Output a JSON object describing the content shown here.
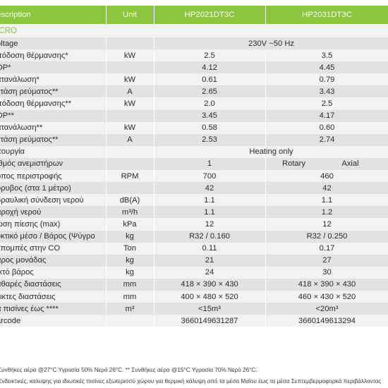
{
  "header": {
    "description": "escription",
    "unit": "Unit",
    "model1": "HP2021DT3C",
    "model2": "HP2031DT3C"
  },
  "section_label": "ICRO",
  "rows": [
    {
      "desc": "oltage",
      "unit": "",
      "span": "230V ~50 Hz"
    },
    {
      "desc": "πόδοση θέρμανσης*",
      "unit": "kW",
      "v1": "2.5",
      "v2": "3.5"
    },
    {
      "desc": "OP*",
      "unit": "",
      "v1": "4.12",
      "v2": "4.45"
    },
    {
      "desc": "ατανάλωση*",
      "unit": "kW",
      "v1": "0.61",
      "v2": "0.79"
    },
    {
      "desc": "ντάση ρεύματος**",
      "unit": "A",
      "v1": "2.65",
      "v2": "3.43"
    },
    {
      "desc": "πόδοση θέρμανσης**",
      "unit": "kW",
      "v1": "2.0",
      "v2": "2.5"
    },
    {
      "desc": "OP**",
      "unit": "",
      "v1": "3.45",
      "v2": "4.17"
    },
    {
      "desc": "ατανάλωση**",
      "unit": "kW",
      "v1": "0.58",
      "v2": "0.60"
    },
    {
      "desc": "ντάση ρεύματος**",
      "unit": "A",
      "v1": "2.53",
      "v2": "2.74"
    },
    {
      "desc": "ιτουργία",
      "unit": "",
      "span": "Heating only"
    },
    {
      "desc": "ιθμός ανεμιστήρων",
      "unit": "",
      "v1": "1",
      "split": [
        "Rotary",
        "Axial"
      ]
    },
    {
      "desc": "όπος περιστροφής",
      "unit": "RPM",
      "v1": "700",
      "v2": "460"
    },
    {
      "desc": "όρυβος (στα 1 μέτρο)",
      "unit": "",
      "v1": "42",
      "v2": "42"
    },
    {
      "desc": "δραυλική σύνδεση νερού",
      "unit": "dB(A)",
      "v1": "1.1",
      "v2": "1.1"
    },
    {
      "desc": "αροχή νερού",
      "unit": "m³/h",
      "v1": "1.1",
      "v2": "1.2"
    },
    {
      "desc": "ώση πίεσης (max)",
      "unit": "kPa",
      "v1": "12",
      "v2": "12"
    },
    {
      "desc": "υκτικό μέσο / Βάρος (Ψύγρο",
      "unit": "kg",
      "v1": "R32 / 0.160",
      "v2": "R32 / 0.250"
    },
    {
      "desc": "κπομπές στην CO",
      "unit": "Ton",
      "v1": "0.11",
      "v2": "0.17"
    },
    {
      "desc": "άρος μονάδας",
      "unit": "kg",
      "v1": "21",
      "v2": "27"
    },
    {
      "desc": "ικτό βάρος",
      "unit": "kg",
      "v1": "24",
      "v2": "30"
    },
    {
      "desc": "αθαρές διαστάσεις",
      "unit": "mm",
      "v1": "418 × 390 × 430",
      "v2": "418 × 390 × 430"
    },
    {
      "desc": "εικτες διαστάσεις",
      "unit": "mm",
      "v1": "400 × 480 × 520",
      "v2": "460 × 430 × 520"
    },
    {
      "desc": "α πισίνες έως ****",
      "unit": "m³",
      "v1": "<15m³",
      "v2": "<20m³"
    },
    {
      "desc": "arcode",
      "unit": "",
      "v1": "3660149631287",
      "v2": "3660149613294"
    }
  ],
  "notes": {
    "line1": "Συνθήκες αέρα @27°C Υγρασία 50% Νερό 26°C. ** Συνθήκες αέρα @15°C Υγρασία 70% Νερό 26°C.",
    "line2": "Ενδεικτικές, καλυψης για ιδιωτικές πισίνες εξωτερισσύ χώρου για θερμική κάλυψη από τα μέσα Μαΐου έως τα μέσα Σεπτεμβερμοφορκά περιβάλλοντος"
  },
  "colors": {
    "header_bg": "#8cc63f",
    "row_light": "#f2f2f2",
    "row_dark": "#e2e2e2",
    "section_text": "#8cc63f"
  }
}
